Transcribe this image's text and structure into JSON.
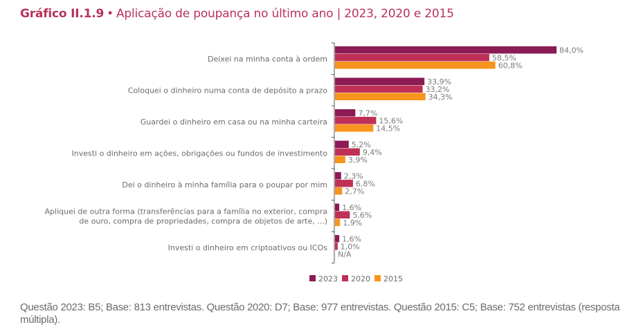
{
  "title": {
    "label": "Gráfico II.1.9",
    "separator": "•",
    "text": "Aplicação de poupança no último ano | 2023, 2020 e 2015"
  },
  "colors": {
    "2023": "#8c1a54",
    "2020": "#bf3057",
    "2015": "#f7941d",
    "title": "#b8325a"
  },
  "chart_data": {
    "type": "bar",
    "orientation": "horizontal",
    "title": "Aplicação de poupança no último ano | 2023, 2020 e 2015",
    "xlabel": "",
    "ylabel": "",
    "xlim": [
      0,
      84
    ],
    "grid": false,
    "legend_position": "bottom",
    "categories": [
      [
        "Deixei na minha conta à ordem"
      ],
      [
        "Coloquei o dinheiro numa conta de depósito a prazo"
      ],
      [
        "Guardei o dinheiro em casa ou na minha carteira"
      ],
      [
        "Investi o dinheiro em ações, obrigações ou fundos de investimento"
      ],
      [
        "Dei o dinheiro à minha família para o poupar por mim"
      ],
      [
        "Apliquei de outra forma (transferências para a família no exterior, compra",
        "de ouro, compra de propriedades, compra de objetos de arte, ...)"
      ],
      [
        "Investi o dinheiro em criptoativos ou ICOs"
      ]
    ],
    "series": [
      {
        "name": "2023",
        "values": [
          84.0,
          33.9,
          7.7,
          5.2,
          2.3,
          1.6,
          1.6
        ],
        "labels": [
          "84,0%",
          "33,9%",
          "7,7%",
          "5,2%",
          "2,3%",
          "1,6%",
          "1,6%"
        ]
      },
      {
        "name": "2020",
        "values": [
          58.5,
          33.2,
          15.6,
          9.4,
          6.8,
          5.6,
          1.0
        ],
        "labels": [
          "58,5%",
          "33,2%",
          "15,6%",
          "9,4%",
          "6,8%",
          "5,6%",
          "1,0%"
        ]
      },
      {
        "name": "2015",
        "values": [
          60.8,
          34.3,
          14.5,
          3.9,
          2.7,
          1.9,
          null
        ],
        "labels": [
          "60,8%",
          "34,3%",
          "14,5%",
          "3,9%",
          "2,7%",
          "1,9%",
          "N/A"
        ]
      }
    ]
  },
  "note": "Questão 2023: B5; Base: 813 entrevistas. Questão 2020: D7; Base: 977 entrevistas. Questão 2015: C5; Base: 752 entrevistas (resposta múltipla)."
}
